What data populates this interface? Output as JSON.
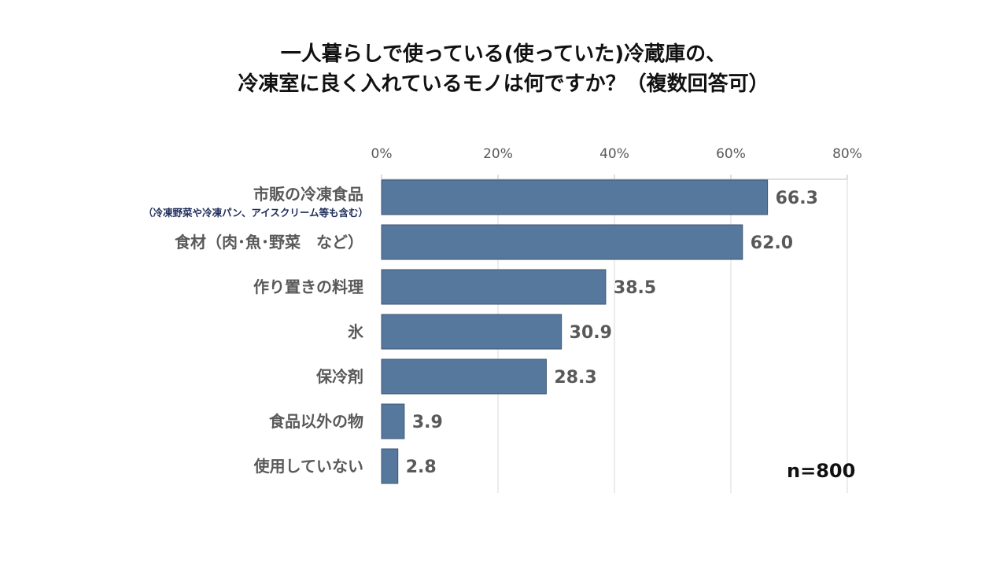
{
  "title_lines": [
    "一人暮らしで使っている(使っていた)冷蔵庫の、",
    "冷凍室に良く入れているモノは何ですか？（複数回答可）"
  ],
  "n_label": "n=800",
  "chart_data": {
    "type": "bar",
    "orientation": "horizontal",
    "categories": [
      "市販の冷凍食品",
      "食材（肉･魚･野菜　など）",
      "作り置きの料理",
      "氷",
      "保冷剤",
      "食品以外の物",
      "使用していない"
    ],
    "category_notes": [
      "（冷凍野菜や冷凍パン、アイスクリーム等も含む）",
      "",
      "",
      "",
      "",
      "",
      ""
    ],
    "values": [
      66.3,
      62.0,
      38.5,
      30.9,
      28.3,
      3.9,
      2.8
    ],
    "value_labels": [
      "66.3",
      "62.0",
      "38.5",
      "30.9",
      "28.3",
      "3.9",
      "2.8"
    ],
    "xlim": [
      0,
      80
    ],
    "x_ticks": [
      "0%",
      "20%",
      "40%",
      "60%",
      "80%"
    ],
    "x_axis_position": "top",
    "grid": true,
    "bar_color": "#56789d"
  }
}
